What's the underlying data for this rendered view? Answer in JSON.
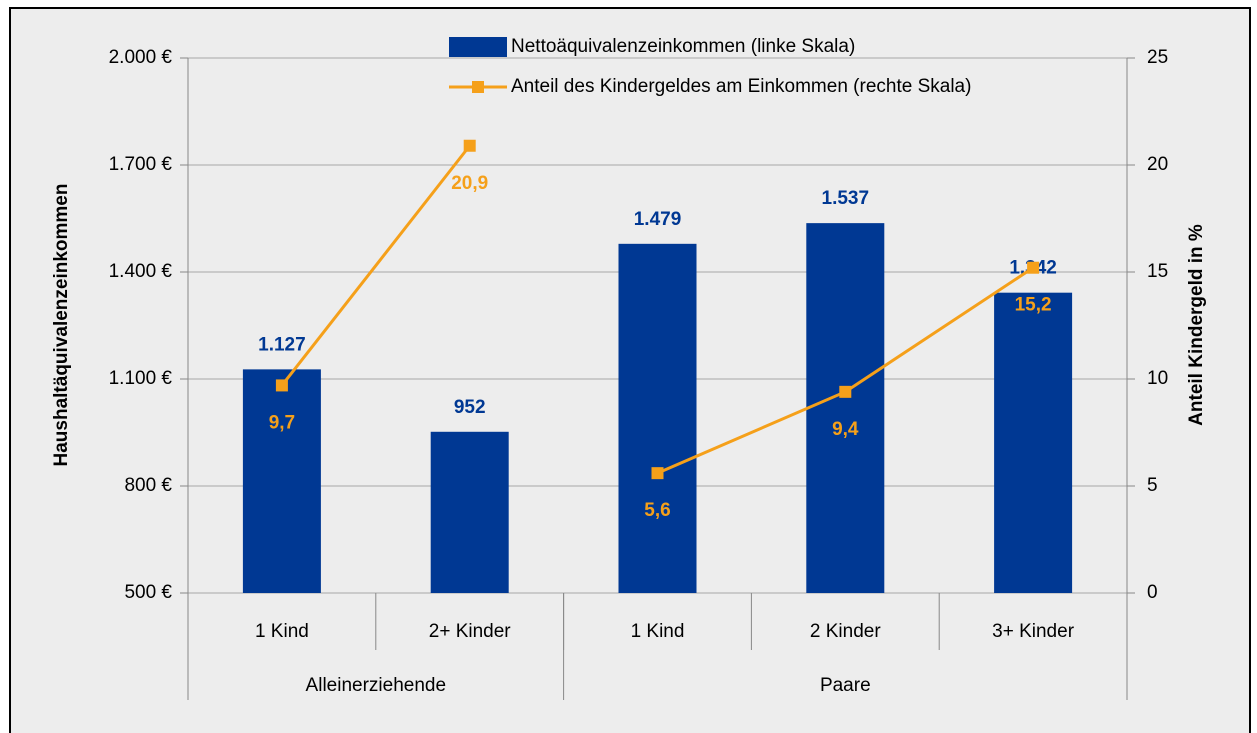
{
  "chart_data": {
    "type": "bar",
    "categories": [
      "1 Kind",
      "2+ Kinder",
      "1 Kind",
      "2 Kinder",
      "3+ Kinder"
    ],
    "groups": [
      {
        "name": "Alleinerziehende",
        "size": 2
      },
      {
        "name": "Paare",
        "size": 3
      }
    ],
    "series": [
      {
        "name": "Nettoäquivalenzeinkommen (linke Skala)",
        "type": "bar",
        "color": "#003893",
        "values": [
          1127,
          952,
          1479,
          1537,
          1342
        ],
        "value_labels": [
          "1.127",
          "952",
          "1.479",
          "1.537",
          "1.342"
        ]
      },
      {
        "name": "Anteil des Kindergeldes am Einkommen (rechte Skala)",
        "type": "line",
        "axis": "y2",
        "color": "#f5a01a",
        "values": [
          9.7,
          20.9,
          5.6,
          9.4,
          15.2
        ],
        "value_labels": [
          "9,7",
          "20,9",
          "5,6",
          "9,4",
          "15,2"
        ]
      }
    ],
    "ylabel": "Haushaltäquivalenzeinkommen",
    "y2label": "Anteil Kindergeld in %",
    "ylim": [
      500,
      2000
    ],
    "yticks": [
      {
        "value": 500,
        "label": "500 €"
      },
      {
        "value": 800,
        "label": "800 €"
      },
      {
        "value": 1100,
        "label": "1.100 €"
      },
      {
        "value": 1400,
        "label": "1.400 €"
      },
      {
        "value": 1700,
        "label": "1.700 €"
      },
      {
        "value": 2000,
        "label": "2.000 €"
      }
    ],
    "y2lim": [
      0,
      25
    ],
    "y2ticks": [
      0,
      5,
      10,
      15,
      20,
      25
    ],
    "grid": true,
    "legend": "top"
  }
}
